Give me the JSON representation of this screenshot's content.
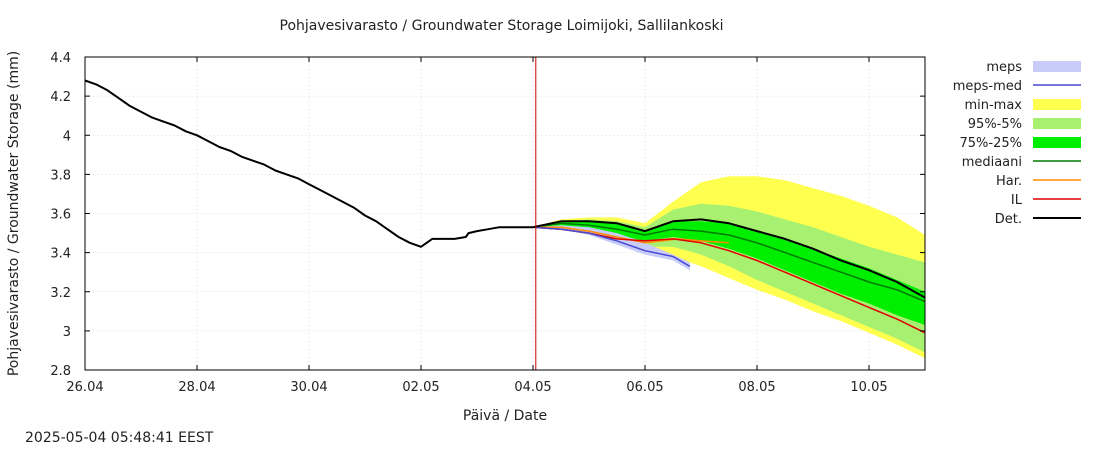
{
  "chart_data": {
    "type": "area",
    "title": "Pohjavesivarasto / Groundwater Storage   Loimijoki, Sallilankoski",
    "xlabel": "Päivä / Date",
    "ylabel": "Pohjavesivarasto / Groundwater Storage (mm)",
    "xlim": [
      0,
      15
    ],
    "ylim": [
      2.8,
      4.4
    ],
    "x_ticks": [
      0,
      2,
      4,
      6,
      8,
      10,
      12,
      14
    ],
    "x_tick_labels": [
      "26.04",
      "28.04",
      "30.04",
      "02.05",
      "04.05",
      "06.05",
      "08.05",
      "10.05"
    ],
    "y_ticks": [
      2.8,
      3.0,
      3.2,
      3.4,
      3.6,
      3.8,
      4.0,
      4.2,
      4.4
    ],
    "y_tick_labels": [
      "2.8",
      "3",
      "3.2",
      "3.4",
      "3.6",
      "3.8",
      "4",
      "4.2",
      "4.4"
    ],
    "grid": true,
    "forecast_start_x": 8.05,
    "timestamp": "2025-05-04 05:48:41 EEST",
    "legend": [
      {
        "label": "meps",
        "type": "band",
        "color": "#c8ccf8"
      },
      {
        "label": "meps-med",
        "type": "line",
        "color": "#4848d0"
      },
      {
        "label": "min-max",
        "type": "band",
        "color": "#ffff50"
      },
      {
        "label": "95%-5%",
        "type": "band",
        "color": "#a8f070"
      },
      {
        "label": "75%-25%",
        "type": "band",
        "color": "#00ee00"
      },
      {
        "label": "mediaani",
        "type": "line",
        "color": "#007a00"
      },
      {
        "label": "Har.",
        "type": "line",
        "color": "#ff8c00"
      },
      {
        "label": "IL",
        "type": "line",
        "color": "#e00000"
      },
      {
        "label": "Det.",
        "type": "line",
        "color": "#000000"
      }
    ],
    "bands": [
      {
        "name": "min-max",
        "color": "#ffff50",
        "x": [
          8.0,
          8.5,
          9.0,
          9.5,
          10.0,
          10.5,
          11.0,
          11.5,
          12.0,
          12.5,
          13.0,
          13.5,
          14.0,
          14.5,
          15.0
        ],
        "upper": [
          3.53,
          3.57,
          3.58,
          3.58,
          3.55,
          3.66,
          3.76,
          3.79,
          3.79,
          3.77,
          3.73,
          3.69,
          3.64,
          3.58,
          3.49
        ],
        "lower": [
          3.53,
          3.52,
          3.49,
          3.46,
          3.4,
          3.38,
          3.33,
          3.27,
          3.21,
          3.16,
          3.1,
          3.05,
          2.99,
          2.93,
          2.86
        ]
      },
      {
        "name": "95%-5%",
        "color": "#a8f070",
        "x": [
          8.0,
          8.5,
          9.0,
          9.5,
          10.0,
          10.5,
          11.0,
          11.5,
          12.0,
          12.5,
          13.0,
          13.5,
          14.0,
          14.5,
          15.0
        ],
        "upper": [
          3.53,
          3.56,
          3.57,
          3.56,
          3.53,
          3.62,
          3.65,
          3.64,
          3.61,
          3.57,
          3.53,
          3.48,
          3.43,
          3.39,
          3.35
        ],
        "lower": [
          3.53,
          3.53,
          3.5,
          3.47,
          3.43,
          3.43,
          3.39,
          3.33,
          3.26,
          3.2,
          3.14,
          3.08,
          3.02,
          2.96,
          2.89
        ]
      },
      {
        "name": "75%-25%",
        "color": "#00ee00",
        "x": [
          8.0,
          8.5,
          9.0,
          9.5,
          10.0,
          10.5,
          11.0,
          11.5,
          12.0,
          12.5,
          13.0,
          13.5,
          14.0,
          14.5,
          15.0
        ],
        "upper": [
          3.53,
          3.56,
          3.56,
          3.55,
          3.51,
          3.56,
          3.56,
          3.55,
          3.51,
          3.47,
          3.42,
          3.37,
          3.32,
          3.26,
          3.2
        ],
        "lower": [
          3.53,
          3.54,
          3.52,
          3.49,
          3.46,
          3.48,
          3.46,
          3.42,
          3.37,
          3.31,
          3.25,
          3.19,
          3.14,
          3.08,
          3.03
        ]
      },
      {
        "name": "meps",
        "color": "#c8ccf8",
        "x": [
          8.0,
          8.5,
          9.0,
          9.5,
          10.0,
          10.5,
          10.8
        ],
        "upper": [
          3.53,
          3.54,
          3.53,
          3.5,
          3.45,
          3.39,
          3.35
        ],
        "lower": [
          3.53,
          3.52,
          3.49,
          3.44,
          3.39,
          3.36,
          3.31
        ]
      }
    ],
    "series": [
      {
        "name": "Det.",
        "color": "#000000",
        "width": 2,
        "x": [
          0,
          0.2,
          0.4,
          0.6,
          0.8,
          1.0,
          1.2,
          1.4,
          1.6,
          1.8,
          2.0,
          2.2,
          2.4,
          2.6,
          2.8,
          3.0,
          3.2,
          3.4,
          3.6,
          3.8,
          4.0,
          4.2,
          4.4,
          4.6,
          4.8,
          5.0,
          5.2,
          5.4,
          5.6,
          5.8,
          6.0,
          6.2,
          6.4,
          6.6,
          6.8,
          6.85,
          7.0,
          7.2,
          7.4,
          7.6,
          7.8,
          8.0,
          8.5,
          9.0,
          9.5,
          10.0,
          10.5,
          11.0,
          11.5,
          12.0,
          12.5,
          13.0,
          13.5,
          14.0,
          14.5,
          15.0
        ],
        "y": [
          4.28,
          4.26,
          4.23,
          4.19,
          4.15,
          4.12,
          4.09,
          4.07,
          4.05,
          4.02,
          4.0,
          3.97,
          3.94,
          3.92,
          3.89,
          3.87,
          3.85,
          3.82,
          3.8,
          3.78,
          3.75,
          3.72,
          3.69,
          3.66,
          3.63,
          3.59,
          3.56,
          3.52,
          3.48,
          3.45,
          3.43,
          3.47,
          3.47,
          3.47,
          3.48,
          3.5,
          3.51,
          3.52,
          3.53,
          3.53,
          3.53,
          3.53,
          3.56,
          3.56,
          3.55,
          3.51,
          3.56,
          3.57,
          3.55,
          3.51,
          3.47,
          3.42,
          3.36,
          3.31,
          3.25,
          3.17
        ]
      },
      {
        "name": "mediaani",
        "color": "#007a00",
        "width": 1.5,
        "x": [
          8.0,
          8.5,
          9.0,
          9.5,
          10.0,
          10.5,
          11.0,
          11.5,
          12.0,
          12.5,
          13.0,
          13.5,
          14.0,
          14.5,
          15.0
        ],
        "y": [
          3.53,
          3.55,
          3.54,
          3.52,
          3.49,
          3.52,
          3.51,
          3.49,
          3.45,
          3.4,
          3.35,
          3.3,
          3.25,
          3.21,
          3.15
        ]
      },
      {
        "name": "Har.",
        "color": "#ff8c00",
        "width": 1.5,
        "x": [
          8.0,
          8.5,
          9.0,
          9.5,
          10.0,
          10.3,
          10.6,
          11.0,
          11.5
        ],
        "y": [
          3.53,
          3.53,
          3.51,
          3.48,
          3.45,
          3.46,
          3.47,
          3.46,
          3.45
        ]
      },
      {
        "name": "IL",
        "color": "#e00000",
        "width": 1.5,
        "x": [
          8.0,
          8.5,
          9.0,
          9.5,
          10.0,
          10.5,
          11.0,
          11.5,
          12.0,
          12.5,
          13.0,
          13.5,
          14.0,
          14.5,
          15.0
        ],
        "y": [
          3.53,
          3.52,
          3.5,
          3.47,
          3.46,
          3.47,
          3.45,
          3.41,
          3.36,
          3.3,
          3.24,
          3.18,
          3.12,
          3.06,
          2.99
        ]
      },
      {
        "name": "meps-med",
        "color": "#4848d0",
        "width": 1.5,
        "x": [
          8.0,
          8.5,
          9.0,
          9.5,
          10.0,
          10.5,
          10.8
        ],
        "y": [
          3.53,
          3.52,
          3.5,
          3.46,
          3.41,
          3.38,
          3.33
        ]
      }
    ]
  }
}
